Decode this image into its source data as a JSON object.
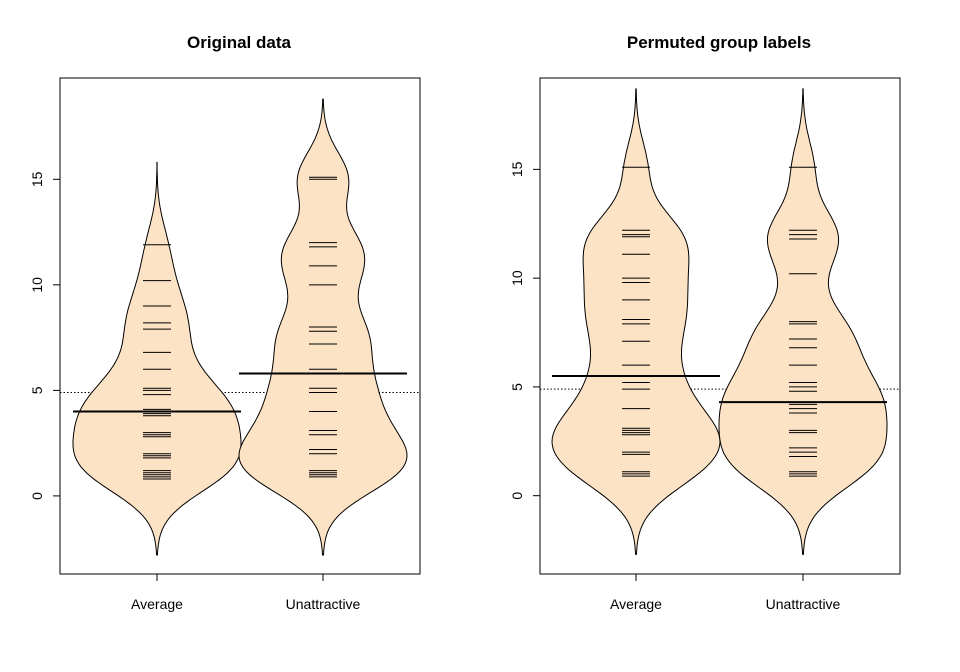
{
  "chart_data": [
    {
      "type": "beanplot",
      "title": "Original data",
      "xlabel": "",
      "ylabel": "",
      "categories": [
        "Average",
        "Unattractive"
      ],
      "y_ticks": [
        0,
        5,
        10,
        15
      ],
      "ylim": [
        -3.7,
        19.8
      ],
      "overall_mean": 4.9,
      "groups": [
        {
          "name": "Average",
          "mean": 4.0,
          "density_range": [
            -2.8,
            15.8
          ],
          "values": [
            0.8,
            0.9,
            1.0,
            1.1,
            1.2,
            1.8,
            1.9,
            2.0,
            2.8,
            2.9,
            3.0,
            3.8,
            3.9,
            4.0,
            4.1,
            4.8,
            5.0,
            5.1,
            6.0,
            6.8,
            7.9,
            8.2,
            9.0,
            10.2,
            11.9
          ]
        },
        {
          "name": "Unattractive",
          "mean": 5.8,
          "density_range": [
            -2.8,
            18.8
          ],
          "values": [
            0.9,
            1.0,
            1.1,
            1.2,
            2.0,
            2.2,
            2.9,
            3.1,
            4.0,
            4.9,
            5.1,
            6.0,
            7.2,
            7.8,
            8.0,
            10.0,
            10.9,
            11.8,
            12.0,
            15.0,
            15.1
          ]
        }
      ]
    },
    {
      "type": "beanplot",
      "title": "Permuted group labels",
      "xlabel": "",
      "ylabel": "",
      "categories": [
        "Average",
        "Unattractive"
      ],
      "y_ticks": [
        0,
        5,
        10,
        15
      ],
      "ylim": [
        -3.6,
        19.2
      ],
      "overall_mean": 4.9,
      "groups": [
        {
          "name": "Average",
          "mean": 5.5,
          "density_range": [
            -2.7,
            18.7
          ],
          "values": [
            0.9,
            1.0,
            1.1,
            1.9,
            2.0,
            2.8,
            2.9,
            3.0,
            3.1,
            4.0,
            4.9,
            5.2,
            6.0,
            7.1,
            7.9,
            8.1,
            9.0,
            9.8,
            10.0,
            11.1,
            11.9,
            12.0,
            12.2,
            15.1
          ]
        },
        {
          "name": "Unattractive",
          "mean": 4.3,
          "density_range": [
            -2.7,
            18.7
          ],
          "values": [
            0.9,
            1.0,
            1.1,
            1.8,
            2.0,
            2.2,
            2.9,
            3.0,
            3.8,
            4.0,
            4.2,
            4.8,
            5.0,
            5.2,
            6.0,
            6.8,
            7.2,
            7.9,
            8.0,
            10.2,
            11.8,
            12.0,
            12.2,
            15.1
          ]
        }
      ]
    }
  ],
  "style": {
    "bean_fill": "#FDE3C5",
    "line_color": "#000000"
  }
}
